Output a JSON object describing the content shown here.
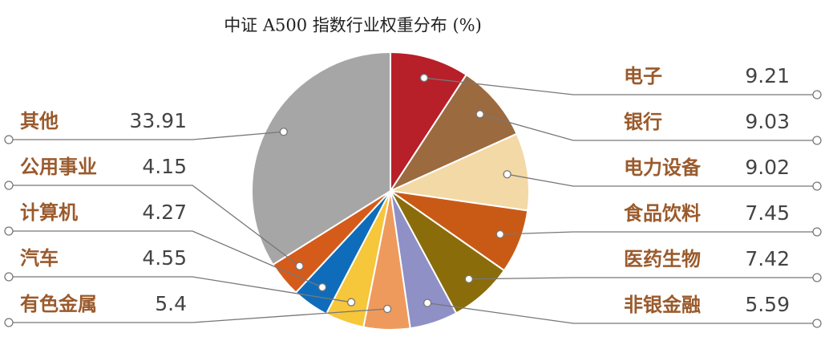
{
  "chart_data": {
    "type": "pie",
    "title": "中证 A500 指数行业权重分布 (%)",
    "categories": [
      "电子",
      "银行",
      "电力设备",
      "食品饮料",
      "医药生物",
      "非银金融",
      "有色金属",
      "汽车",
      "计算机",
      "公用事业",
      "其他"
    ],
    "values": [
      9.21,
      9.03,
      9.02,
      7.45,
      7.42,
      5.59,
      5.4,
      4.55,
      4.27,
      4.15,
      33.91
    ],
    "colors": [
      "#b71f29",
      "#9c6a3f",
      "#f3d9a6",
      "#c95a16",
      "#8b6c0b",
      "#8f90c6",
      "#ee9a5c",
      "#f6c63b",
      "#0f6cba",
      "#d55b1b",
      "#a6a6a6"
    ]
  }
}
